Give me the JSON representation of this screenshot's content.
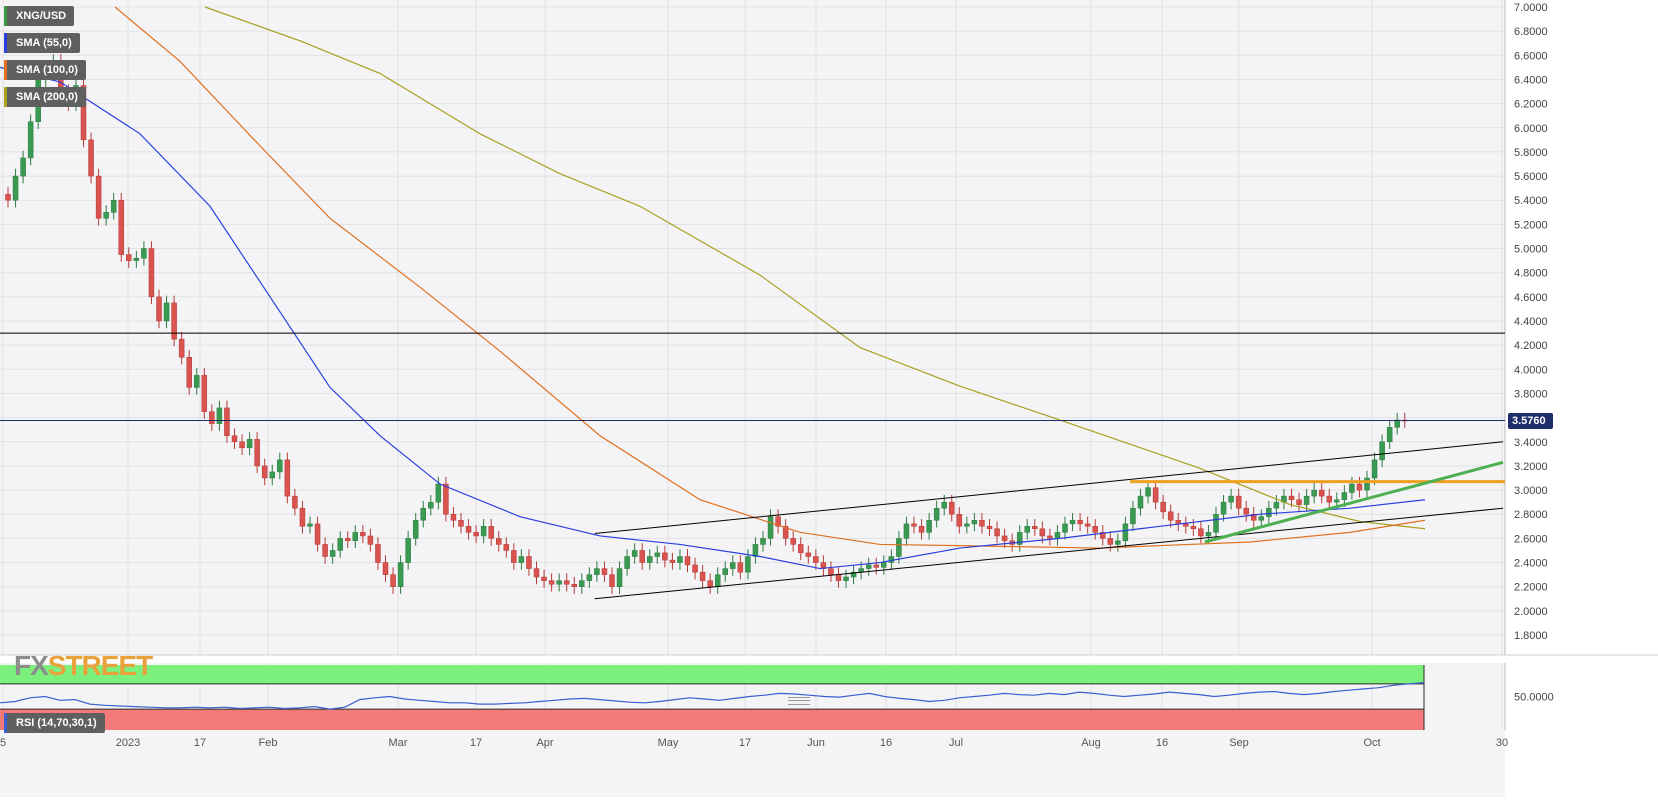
{
  "chart_data": [
    {
      "type": "candlestick",
      "symbol": "XNG/USD",
      "indicators": [
        {
          "name": "SMA (55,0)",
          "color": "#2a3fe0"
        },
        {
          "name": "SMA (100,0)",
          "color": "#e07020"
        },
        {
          "name": "SMA (200,0)",
          "color": "#a8a020"
        }
      ],
      "y_ticks": [
        "7.0000",
        "6.8000",
        "6.6000",
        "6.4000",
        "6.2000",
        "6.0000",
        "5.8000",
        "5.6000",
        "5.4000",
        "5.2000",
        "5.0000",
        "4.8000",
        "4.6000",
        "4.4000",
        "4.2000",
        "4.0000",
        "3.8000",
        "3.6000",
        "3.4000",
        "3.2000",
        "3.0000",
        "2.8000",
        "2.6000",
        "2.4000",
        "2.2000",
        "2.0000",
        "1.8000"
      ],
      "ylim": [
        1.6,
        7.0
      ],
      "x_ticks": [
        "5",
        "2023",
        "17",
        "Feb",
        "Mar",
        "17",
        "Apr",
        "May",
        "17",
        "Jun",
        "16",
        "Jul",
        "Aug",
        "16",
        "Sep",
        "Oct",
        "30"
      ],
      "last_price": "3.5760",
      "horizontal_levels": [
        {
          "value": 4.3,
          "color": "#000000"
        },
        {
          "value": 3.576,
          "color": "#1f2d6b"
        },
        {
          "value": 3.07,
          "color": "#f0a020"
        }
      ],
      "trendlines": [
        {
          "from": [
            "2023-04-12",
            2.64
          ],
          "to": [
            "2023-10-30",
            3.4
          ],
          "color": "#000000"
        },
        {
          "from": [
            "2023-04-12",
            2.1
          ],
          "to": [
            "2023-10-30",
            2.85
          ],
          "color": "#000000"
        },
        {
          "from": [
            "2023-08-25",
            2.57
          ],
          "to": [
            "2023-10-30",
            3.23
          ],
          "color": "#4caf50"
        }
      ],
      "ohlc_close_path": [
        [
          -2,
          5.4
        ],
        [
          -1,
          5.6
        ],
        [
          0,
          5.75
        ],
        [
          1,
          6.05
        ],
        [
          2,
          6.4
        ],
        [
          3,
          6.5
        ],
        [
          4,
          6.55
        ],
        [
          5,
          6.3
        ],
        [
          6,
          6.2
        ],
        [
          7,
          6.35
        ],
        [
          8,
          5.9
        ],
        [
          9,
          5.6
        ],
        [
          10,
          5.25
        ],
        [
          11,
          5.3
        ],
        [
          12,
          5.4
        ],
        [
          13,
          4.95
        ],
        [
          14,
          4.9
        ],
        [
          15,
          4.92
        ],
        [
          16,
          5.0
        ],
        [
          17,
          4.6
        ],
        [
          18,
          4.4
        ],
        [
          19,
          4.55
        ],
        [
          20,
          4.25
        ],
        [
          21,
          4.1
        ],
        [
          22,
          3.85
        ],
        [
          23,
          3.95
        ],
        [
          24,
          3.65
        ],
        [
          25,
          3.55
        ],
        [
          26,
          3.68
        ],
        [
          27,
          3.45
        ],
        [
          28,
          3.4
        ],
        [
          29,
          3.35
        ],
        [
          30,
          3.42
        ],
        [
          31,
          3.2
        ],
        [
          32,
          3.1
        ],
        [
          33,
          3.15
        ],
        [
          34,
          3.25
        ],
        [
          35,
          2.95
        ],
        [
          36,
          2.85
        ],
        [
          37,
          2.7
        ],
        [
          38,
          2.72
        ],
        [
          39,
          2.55
        ],
        [
          40,
          2.45
        ],
        [
          41,
          2.5
        ],
        [
          42,
          2.6
        ],
        [
          43,
          2.58
        ],
        [
          44,
          2.65
        ],
        [
          45,
          2.62
        ],
        [
          46,
          2.55
        ],
        [
          47,
          2.4
        ],
        [
          48,
          2.3
        ],
        [
          49,
          2.2
        ],
        [
          50,
          2.4
        ],
        [
          51,
          2.6
        ],
        [
          52,
          2.75
        ],
        [
          53,
          2.85
        ],
        [
          54,
          2.9
        ],
        [
          55,
          3.05
        ],
        [
          56,
          2.8
        ],
        [
          57,
          2.75
        ],
        [
          58,
          2.7
        ],
        [
          59,
          2.65
        ],
        [
          60,
          2.62
        ],
        [
          61,
          2.7
        ],
        [
          62,
          2.6
        ],
        [
          63,
          2.55
        ],
        [
          64,
          2.5
        ],
        [
          65,
          2.4
        ],
        [
          66,
          2.45
        ],
        [
          67,
          2.35
        ],
        [
          68,
          2.28
        ],
        [
          69,
          2.25
        ],
        [
          70,
          2.22
        ],
        [
          71,
          2.25
        ],
        [
          72,
          2.22
        ],
        [
          73,
          2.2
        ],
        [
          74,
          2.25
        ],
        [
          75,
          2.3
        ],
        [
          76,
          2.35
        ],
        [
          77,
          2.3
        ],
        [
          78,
          2.2
        ],
        [
          79,
          2.35
        ],
        [
          80,
          2.45
        ],
        [
          81,
          2.5
        ],
        [
          82,
          2.4
        ],
        [
          83,
          2.45
        ],
        [
          84,
          2.48
        ],
        [
          85,
          2.42
        ],
        [
          86,
          2.4
        ],
        [
          87,
          2.45
        ],
        [
          88,
          2.38
        ],
        [
          89,
          2.32
        ],
        [
          90,
          2.25
        ],
        [
          91,
          2.2
        ],
        [
          92,
          2.3
        ],
        [
          93,
          2.35
        ],
        [
          94,
          2.4
        ],
        [
          95,
          2.32
        ],
        [
          96,
          2.45
        ],
        [
          97,
          2.55
        ],
        [
          98,
          2.6
        ],
        [
          99,
          2.78
        ],
        [
          100,
          2.7
        ],
        [
          101,
          2.6
        ],
        [
          102,
          2.55
        ],
        [
          103,
          2.48
        ],
        [
          104,
          2.45
        ],
        [
          105,
          2.4
        ],
        [
          106,
          2.35
        ],
        [
          107,
          2.3
        ],
        [
          108,
          2.25
        ],
        [
          109,
          2.28
        ],
        [
          110,
          2.32
        ],
        [
          111,
          2.35
        ],
        [
          112,
          2.38
        ],
        [
          113,
          2.36
        ],
        [
          114,
          2.4
        ],
        [
          115,
          2.45
        ],
        [
          116,
          2.6
        ],
        [
          117,
          2.72
        ],
        [
          118,
          2.7
        ],
        [
          119,
          2.65
        ],
        [
          120,
          2.75
        ],
        [
          121,
          2.85
        ],
        [
          122,
          2.9
        ],
        [
          123,
          2.8
        ],
        [
          124,
          2.7
        ],
        [
          125,
          2.72
        ],
        [
          126,
          2.75
        ],
        [
          127,
          2.7
        ],
        [
          128,
          2.68
        ],
        [
          129,
          2.62
        ],
        [
          130,
          2.58
        ],
        [
          131,
          2.55
        ],
        [
          132,
          2.65
        ],
        [
          133,
          2.7
        ],
        [
          134,
          2.68
        ],
        [
          135,
          2.62
        ],
        [
          136,
          2.6
        ],
        [
          137,
          2.65
        ],
        [
          138,
          2.72
        ],
        [
          139,
          2.75
        ],
        [
          140,
          2.72
        ],
        [
          141,
          2.7
        ],
        [
          142,
          2.65
        ],
        [
          143,
          2.6
        ],
        [
          144,
          2.55
        ],
        [
          145,
          2.58
        ],
        [
          146,
          2.72
        ],
        [
          147,
          2.85
        ],
        [
          148,
          2.95
        ],
        [
          149,
          3.02
        ],
        [
          150,
          2.9
        ],
        [
          151,
          2.82
        ],
        [
          152,
          2.75
        ],
        [
          153,
          2.72
        ],
        [
          154,
          2.7
        ],
        [
          155,
          2.68
        ],
        [
          156,
          2.62
        ],
        [
          157,
          2.65
        ],
        [
          158,
          2.8
        ],
        [
          159,
          2.9
        ],
        [
          160,
          2.95
        ],
        [
          161,
          2.85
        ],
        [
          162,
          2.8
        ],
        [
          163,
          2.75
        ],
        [
          164,
          2.78
        ],
        [
          165,
          2.85
        ],
        [
          166,
          2.9
        ],
        [
          167,
          2.95
        ],
        [
          168,
          2.92
        ],
        [
          169,
          2.88
        ],
        [
          170,
          2.95
        ],
        [
          171,
          3.0
        ],
        [
          172,
          2.95
        ],
        [
          173,
          2.9
        ],
        [
          174,
          2.92
        ],
        [
          175,
          2.98
        ],
        [
          176,
          3.05
        ],
        [
          177,
          3.0
        ],
        [
          178,
          3.1
        ],
        [
          179,
          3.25
        ],
        [
          180,
          3.4
        ],
        [
          181,
          3.52
        ],
        [
          182,
          3.58
        ],
        [
          183,
          3.576
        ]
      ]
    },
    {
      "type": "line",
      "series": [
        {
          "name": "RSI (14,70,30,1)",
          "color": "#3a5fd0"
        }
      ],
      "y_ticks": [
        "50.0000"
      ],
      "ylim": [
        0,
        100
      ],
      "overbought": 70,
      "oversold": 30
    }
  ]
}
